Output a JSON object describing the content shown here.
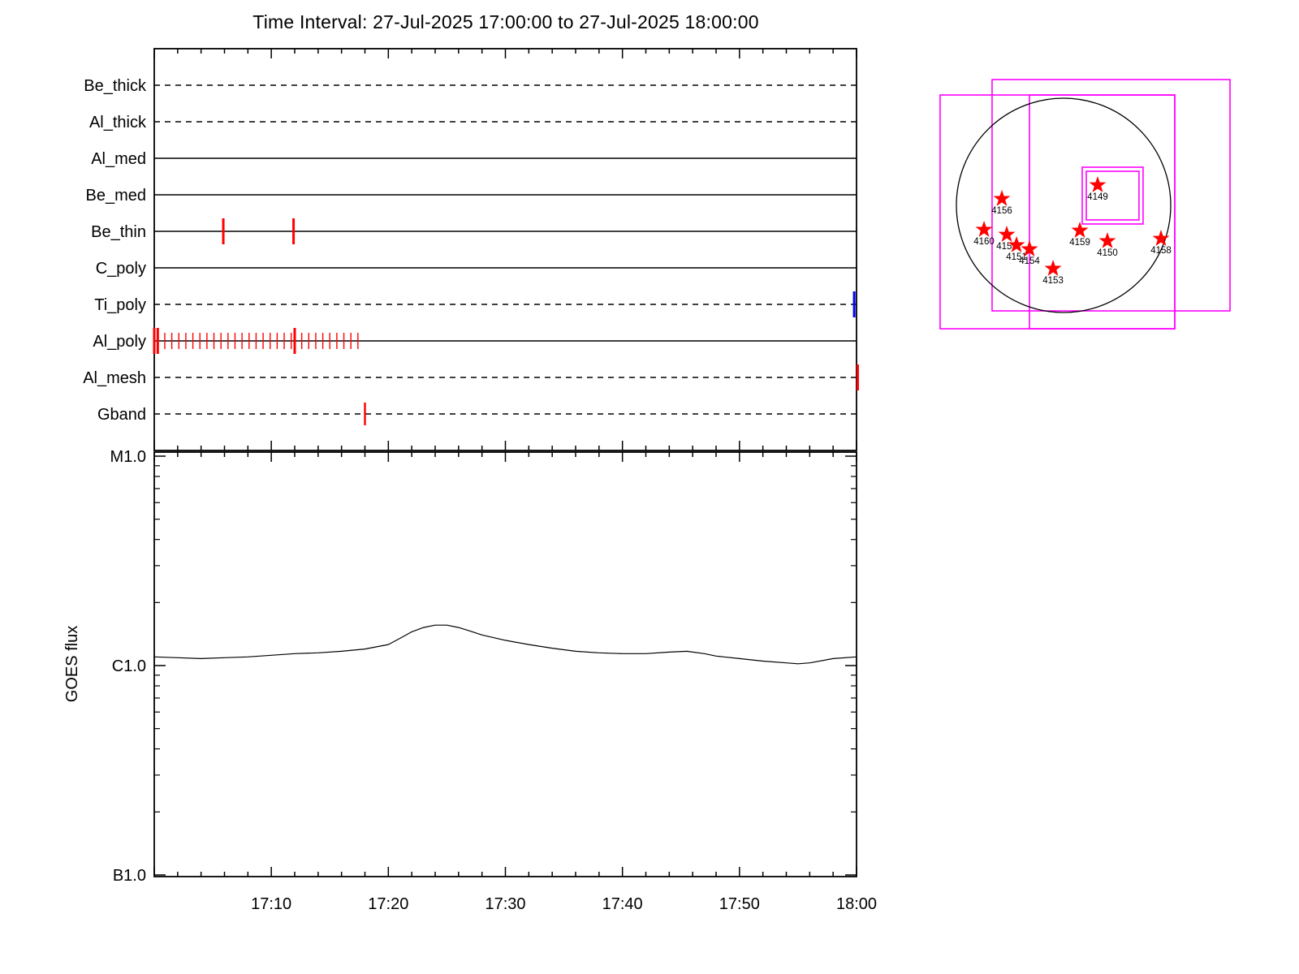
{
  "title": "Time Interval: 27-Jul-2025 17:00:00 to 27-Jul-2025 18:00:00",
  "colors": {
    "exposure": "#ff0000",
    "special": "#0000ff",
    "fov": "#ff00ff",
    "axis": "#000000",
    "star": "#ff0000"
  },
  "chart_data": [
    {
      "id": "filter_timeline",
      "type": "timeline",
      "x_range_minutes": [
        0,
        60
      ],
      "rows": [
        {
          "label": "Be_thick",
          "line": "dashed",
          "events": []
        },
        {
          "label": "Al_thick",
          "line": "dashed",
          "events": []
        },
        {
          "label": "Al_med",
          "line": "solid",
          "events": []
        },
        {
          "label": "Be_med",
          "line": "solid",
          "events": []
        },
        {
          "label": "Be_thin",
          "line": "solid",
          "events": [
            {
              "t": 5.9,
              "color": "red",
              "size": "large"
            },
            {
              "t": 11.9,
              "color": "red",
              "size": "large"
            }
          ]
        },
        {
          "label": "C_poly",
          "line": "solid",
          "events": []
        },
        {
          "label": "Ti_poly",
          "line": "dashed",
          "events": [
            {
              "t": 59.8,
              "color": "blue",
              "size": "large"
            }
          ]
        },
        {
          "label": "Al_poly",
          "line": "solid",
          "events": [
            {
              "t": 0.0,
              "color": "red",
              "size": "large"
            },
            {
              "t": 0.3,
              "color": "red",
              "size": "large"
            },
            {
              "t": 0.9,
              "color": "red",
              "size": "small"
            },
            {
              "t": 1.5,
              "color": "red",
              "size": "small"
            },
            {
              "t": 2.1,
              "color": "red",
              "size": "small"
            },
            {
              "t": 2.7,
              "color": "red",
              "size": "small"
            },
            {
              "t": 3.3,
              "color": "red",
              "size": "small"
            },
            {
              "t": 3.9,
              "color": "red",
              "size": "small"
            },
            {
              "t": 4.5,
              "color": "red",
              "size": "small"
            },
            {
              "t": 5.1,
              "color": "red",
              "size": "small"
            },
            {
              "t": 5.7,
              "color": "red",
              "size": "small"
            },
            {
              "t": 6.3,
              "color": "red",
              "size": "small"
            },
            {
              "t": 6.9,
              "color": "red",
              "size": "small"
            },
            {
              "t": 7.5,
              "color": "red",
              "size": "small"
            },
            {
              "t": 8.1,
              "color": "red",
              "size": "small"
            },
            {
              "t": 8.7,
              "color": "red",
              "size": "small"
            },
            {
              "t": 9.3,
              "color": "red",
              "size": "small"
            },
            {
              "t": 9.9,
              "color": "red",
              "size": "small"
            },
            {
              "t": 10.5,
              "color": "red",
              "size": "small"
            },
            {
              "t": 11.1,
              "color": "red",
              "size": "small"
            },
            {
              "t": 11.7,
              "color": "red",
              "size": "small"
            },
            {
              "t": 12.0,
              "color": "red",
              "size": "large"
            },
            {
              "t": 12.6,
              "color": "red",
              "size": "small"
            },
            {
              "t": 13.2,
              "color": "red",
              "size": "small"
            },
            {
              "t": 13.8,
              "color": "red",
              "size": "small"
            },
            {
              "t": 14.4,
              "color": "red",
              "size": "small"
            },
            {
              "t": 15.0,
              "color": "red",
              "size": "small"
            },
            {
              "t": 15.6,
              "color": "red",
              "size": "small"
            },
            {
              "t": 16.2,
              "color": "red",
              "size": "small"
            },
            {
              "t": 16.8,
              "color": "red",
              "size": "small"
            },
            {
              "t": 17.4,
              "color": "red",
              "size": "small"
            }
          ]
        },
        {
          "label": "Al_mesh",
          "line": "dashed",
          "events": [
            {
              "t": 60.1,
              "color": "red",
              "size": "large"
            }
          ]
        },
        {
          "label": "Gband",
          "line": "dashed",
          "events": [
            {
              "t": 18.0,
              "color": "red",
              "size": "medium"
            }
          ]
        }
      ]
    },
    {
      "id": "goes_flux",
      "type": "line",
      "ylabel": "GOES flux",
      "y_scale": "log",
      "y_ticks": [
        {
          "label": "M1.0",
          "value": 1e-05
        },
        {
          "label": "C1.0",
          "value": 1e-06
        },
        {
          "label": "B1.0",
          "value": 1e-07
        }
      ],
      "x_ticks": [
        {
          "label": "17:10",
          "minute": 10
        },
        {
          "label": "17:20",
          "minute": 20
        },
        {
          "label": "17:30",
          "minute": 30
        },
        {
          "label": "17:40",
          "minute": 40
        },
        {
          "label": "17:50",
          "minute": 50
        },
        {
          "label": "18:00",
          "minute": 60
        }
      ],
      "x_minutes": [
        0,
        2,
        4,
        6,
        8,
        10,
        12,
        14,
        16,
        18,
        20,
        21,
        22,
        23,
        24,
        25,
        26,
        27,
        28,
        30,
        32,
        34,
        36,
        38,
        40,
        42,
        44,
        45.5,
        47,
        48,
        50,
        52,
        54,
        55,
        56,
        58,
        60
      ],
      "flux_wm2": [
        1.1e-06,
        1.09e-06,
        1.08e-06,
        1.09e-06,
        1.1e-06,
        1.12e-06,
        1.14e-06,
        1.15e-06,
        1.17e-06,
        1.2e-06,
        1.26e-06,
        1.35e-06,
        1.45e-06,
        1.52e-06,
        1.56e-06,
        1.56e-06,
        1.52e-06,
        1.46e-06,
        1.4e-06,
        1.32e-06,
        1.26e-06,
        1.21e-06,
        1.17e-06,
        1.15e-06,
        1.14e-06,
        1.14e-06,
        1.16e-06,
        1.17e-06,
        1.14e-06,
        1.11e-06,
        1.08e-06,
        1.05e-06,
        1.03e-06,
        1.02e-06,
        1.03e-06,
        1.08e-06,
        1.1e-06
      ]
    },
    {
      "id": "solar_map",
      "type": "scatter",
      "description": "Solar disk with instrument FOV boxes and NOAA active regions",
      "fov_boxes_solar_radii": [
        [
          -1.152,
          -1.03,
          1.038,
          1.152
        ],
        [
          -0.667,
          -1.174,
          1.553,
          0.985
        ],
        [
          -0.318,
          -1.03,
          1.038,
          1.152
        ],
        [
          0.174,
          -0.356,
          0.742,
          0.174
        ],
        [
          0.212,
          -0.318,
          0.704,
          0.136
        ]
      ],
      "regions": [
        {
          "noaa": "4149",
          "x": 0.318,
          "y": -0.189
        },
        {
          "noaa": "4156",
          "x": -0.576,
          "y": -0.061
        },
        {
          "noaa": "4160",
          "x": -0.742,
          "y": 0.227
        },
        {
          "noaa": "4155",
          "x": -0.53,
          "y": 0.273
        },
        {
          "noaa": "4151",
          "x": -0.439,
          "y": 0.371
        },
        {
          "noaa": "4154",
          "x": -0.318,
          "y": 0.409
        },
        {
          "noaa": "4159",
          "x": 0.152,
          "y": 0.235
        },
        {
          "noaa": "4150",
          "x": 0.409,
          "y": 0.333
        },
        {
          "noaa": "4153",
          "x": -0.098,
          "y": 0.591
        },
        {
          "noaa": "4158",
          "x": 0.909,
          "y": 0.311
        }
      ]
    }
  ]
}
